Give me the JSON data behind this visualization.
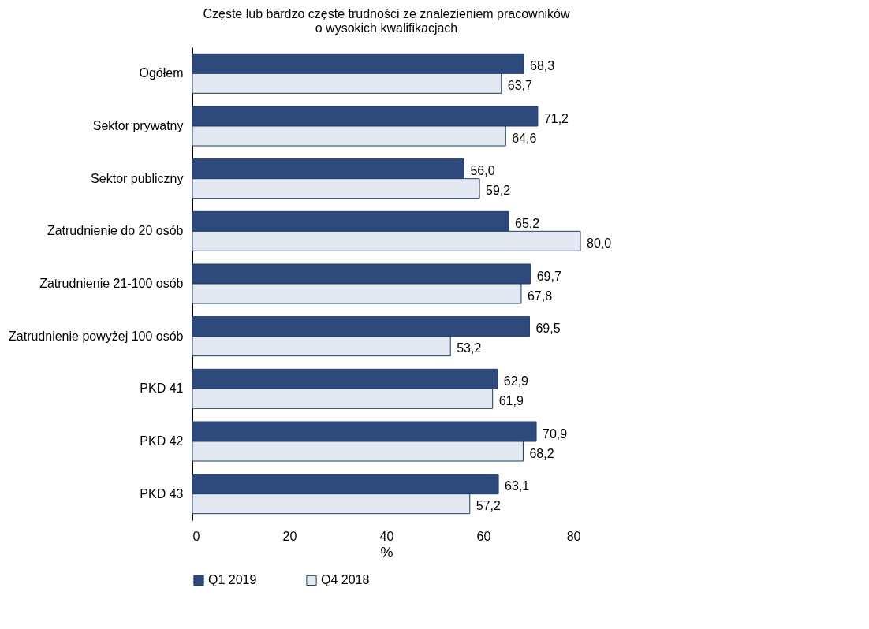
{
  "chart_data": {
    "type": "bar",
    "orientation": "horizontal",
    "title": "Częste lub bardzo częste trudności ze znalezieniem pracowników\no wysokich kwalifikacjach",
    "xlabel": "%",
    "categories": [
      "Ogółem",
      "Sektor prywatny",
      "Sektor publiczny",
      "Zatrudnienie do 20 osób",
      "Zatrudnienie 21-100 osób",
      "Zatrudnienie powyżej 100 osób",
      "PKD 41",
      "PKD 42",
      "PKD 43"
    ],
    "series": [
      {
        "name": "Q1 2019",
        "color": "#2e4a7d",
        "values": [
          68.3,
          71.2,
          56.0,
          65.2,
          69.7,
          69.5,
          62.9,
          70.9,
          63.1
        ],
        "value_labels": [
          "68,3",
          "71,2",
          "56,0",
          "65,2",
          "69,7",
          "69,5",
          "62,9",
          "70,9",
          "63,1"
        ]
      },
      {
        "name": "Q4 2018",
        "color": "#e3e9f3",
        "values": [
          63.7,
          64.6,
          59.2,
          80.0,
          67.8,
          53.2,
          61.9,
          68.2,
          57.2
        ],
        "value_labels": [
          "63,7",
          "64,6",
          "59,2",
          "80,0",
          "67,8",
          "53,2",
          "61,9",
          "68,2",
          "57,2"
        ]
      }
    ],
    "xlim": [
      0,
      80
    ],
    "xticks": [
      0,
      20,
      40,
      60,
      80
    ],
    "grid": false,
    "legend": "bottom"
  }
}
